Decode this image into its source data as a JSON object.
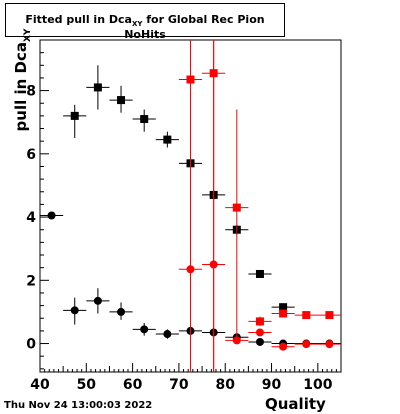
{
  "chart_data": {
    "type": "scatter",
    "title_main": "Fitted pull in Dca",
    "title_sub": "XY",
    "title_rest": " for Global Rec Pion NoHits",
    "xlabel": "Quality",
    "ylabel_main": "pull in Dca",
    "ylabel_sub": "XY",
    "xlim": [
      40,
      105
    ],
    "ylim": [
      -0.9,
      9.6
    ],
    "xticks": [
      40,
      50,
      60,
      70,
      80,
      90,
      100
    ],
    "yticks": [
      0,
      2,
      4,
      6,
      8
    ],
    "grid": false,
    "series": [
      {
        "marker": "square",
        "color": "#000000",
        "points": [
          {
            "x": 47.5,
            "y": 7.2,
            "ylo": 6.5,
            "yhi": 7.55
          },
          {
            "x": 52.5,
            "y": 8.1,
            "ylo": 7.4,
            "yhi": 8.8
          },
          {
            "x": 57.5,
            "y": 7.7,
            "ylo": 7.3,
            "yhi": 8.15
          },
          {
            "x": 62.5,
            "y": 7.1,
            "ylo": 6.7,
            "yhi": 7.4
          },
          {
            "x": 67.5,
            "y": 6.45,
            "ylo": 6.2,
            "yhi": 6.7
          },
          {
            "x": 72.5,
            "y": 5.7,
            "ylo": 5.5,
            "yhi": 5.9
          },
          {
            "x": 77.5,
            "y": 4.7,
            "ylo": 4.55,
            "yhi": 4.85
          },
          {
            "x": 82.5,
            "y": 3.6,
            "ylo": 3.45,
            "yhi": 3.75
          },
          {
            "x": 87.5,
            "y": 2.2,
            "ylo": 2.15,
            "yhi": 2.25
          },
          {
            "x": 92.5,
            "y": 1.15,
            "ylo": 1.1,
            "yhi": 1.2
          }
        ]
      },
      {
        "marker": "circle",
        "color": "#000000",
        "points": [
          {
            "x": 42.5,
            "y": 4.05,
            "ylo": 4.05,
            "yhi": 4.05
          },
          {
            "x": 47.5,
            "y": 1.05,
            "ylo": 0.6,
            "yhi": 1.45
          },
          {
            "x": 52.5,
            "y": 1.35,
            "ylo": 0.95,
            "yhi": 1.75
          },
          {
            "x": 57.5,
            "y": 1.0,
            "ylo": 0.75,
            "yhi": 1.3
          },
          {
            "x": 62.5,
            "y": 0.45,
            "ylo": 0.25,
            "yhi": 0.65
          },
          {
            "x": 67.5,
            "y": 0.3,
            "ylo": 0.15,
            "yhi": 0.45
          },
          {
            "x": 72.5,
            "y": 0.4,
            "ylo": 0.3,
            "yhi": 0.5
          },
          {
            "x": 77.5,
            "y": 0.35,
            "ylo": 0.28,
            "yhi": 0.45
          },
          {
            "x": 82.5,
            "y": 0.2,
            "ylo": 0.15,
            "yhi": 0.25
          },
          {
            "x": 87.5,
            "y": 0.05,
            "ylo": 0.02,
            "yhi": 0.08
          },
          {
            "x": 92.5,
            "y": 0.0,
            "ylo": -0.03,
            "yhi": 0.03
          },
          {
            "x": 97.5,
            "y": 0.0,
            "ylo": -0.02,
            "yhi": 0.02
          },
          {
            "x": 102.5,
            "y": 0.0,
            "ylo": -0.02,
            "yhi": 0.02
          }
        ]
      },
      {
        "marker": "square",
        "color": "#ff0000",
        "points": [
          {
            "x": 72.5,
            "y": 8.35,
            "ylo": -1.5,
            "yhi": 11
          },
          {
            "x": 77.5,
            "y": 8.55,
            "ylo": -1.5,
            "yhi": 11
          },
          {
            "x": 82.5,
            "y": 4.3,
            "ylo": 0.0,
            "yhi": 7.4
          },
          {
            "x": 87.5,
            "y": 0.7,
            "ylo": 0.55,
            "yhi": 0.85
          },
          {
            "x": 92.5,
            "y": 0.95,
            "ylo": 0.9,
            "yhi": 1.0
          },
          {
            "x": 97.5,
            "y": 0.9,
            "ylo": 0.87,
            "yhi": 0.93
          },
          {
            "x": 102.5,
            "y": 0.9,
            "ylo": 0.87,
            "yhi": 0.93
          }
        ]
      },
      {
        "marker": "circle",
        "color": "#ff0000",
        "points": [
          {
            "x": 72.5,
            "y": 2.35,
            "ylo": -1.5,
            "yhi": 11
          },
          {
            "x": 77.5,
            "y": 2.5,
            "ylo": -1.5,
            "yhi": 11
          },
          {
            "x": 82.5,
            "y": 0.1,
            "ylo": 0.0,
            "yhi": 0.3
          },
          {
            "x": 87.5,
            "y": 0.35,
            "ylo": 0.3,
            "yhi": 0.4
          },
          {
            "x": 92.5,
            "y": -0.1,
            "ylo": -0.15,
            "yhi": -0.05
          },
          {
            "x": 97.5,
            "y": -0.02,
            "ylo": -0.05,
            "yhi": 0.01
          },
          {
            "x": 102.5,
            "y": -0.02,
            "ylo": -0.05,
            "yhi": 0.01
          }
        ]
      }
    ]
  },
  "footer": "Thu Nov 24 13:00:03 2022"
}
